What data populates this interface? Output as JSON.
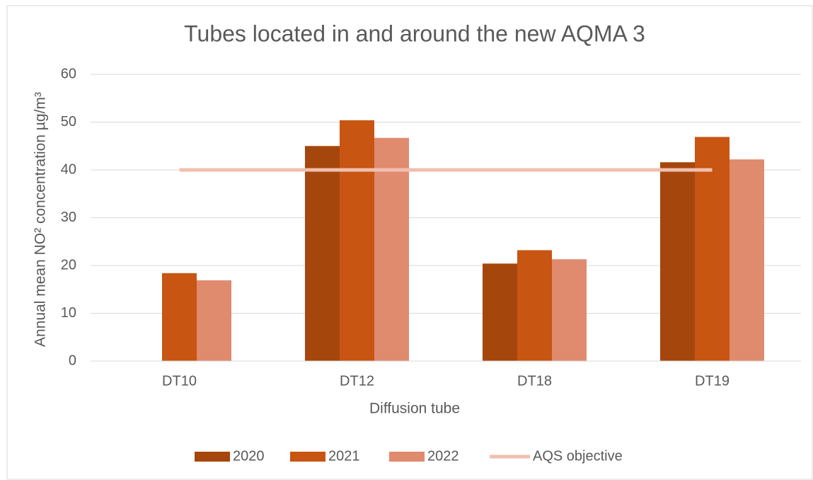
{
  "chart_data": {
    "type": "bar",
    "title": "Tubes located in and around the new AQMA 3",
    "x_label": "Diffusion tube",
    "y_label": "Annual mean NO² concentration µg/m³",
    "categories": [
      "DT10",
      "DT12",
      "DT18",
      "DT19"
    ],
    "series": [
      {
        "name": "2020",
        "color": "#a5470d",
        "values": [
          null,
          45,
          20.4,
          41.6
        ]
      },
      {
        "name": "2021",
        "color": "#c85512",
        "values": [
          18.4,
          50.4,
          23.2,
          46.9
        ]
      },
      {
        "name": "2022",
        "color": "#e08a6e",
        "values": [
          16.9,
          46.7,
          21.3,
          42.2
        ]
      },
      {
        "name": "AQS objective",
        "type": "line",
        "color": "#f0bfae",
        "values": [
          40,
          40,
          40,
          40
        ]
      }
    ],
    "ylim": [
      0,
      60
    ],
    "yticks": [
      0,
      10,
      20,
      30,
      40,
      50,
      60
    ],
    "grid": true,
    "legend": "bottom"
  }
}
